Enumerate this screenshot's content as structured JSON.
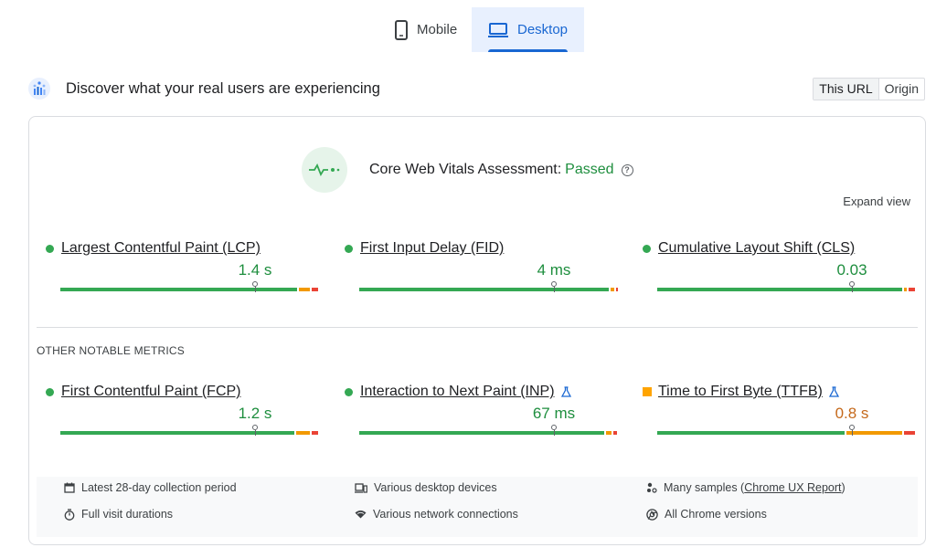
{
  "tabs": [
    {
      "label": "Mobile",
      "icon": "phone-icon",
      "selected": false
    },
    {
      "label": "Desktop",
      "icon": "laptop-icon",
      "selected": true
    }
  ],
  "header": {
    "title": "Discover what your real users are experiencing",
    "scope_options": [
      "This URL",
      "Origin"
    ],
    "scope_selected": "This URL"
  },
  "assessment": {
    "label": "Core Web Vitals Assessment:",
    "status": "Passed",
    "expand_label": "Expand view"
  },
  "core_metrics": [
    {
      "name": "Largest Contentful Paint (LCP)",
      "value": "1.4 s",
      "status": "good",
      "marker": 0.75,
      "dist": [
        0.92,
        0.05,
        0.03
      ]
    },
    {
      "name": "First Input Delay (FID)",
      "value": "4 ms",
      "status": "good",
      "marker": 0.75,
      "dist": [
        0.97,
        0.02,
        0.01
      ]
    },
    {
      "name": "Cumulative Layout Shift (CLS)",
      "value": "0.03",
      "status": "good",
      "marker": 0.75,
      "dist": [
        0.95,
        0.02,
        0.03
      ]
    }
  ],
  "other_label": "OTHER NOTABLE METRICS",
  "other_metrics": [
    {
      "name": "First Contentful Paint (FCP)",
      "value": "1.2 s",
      "status": "good",
      "marker": 0.75,
      "experimental": false,
      "dist": [
        0.91,
        0.06,
        0.03
      ]
    },
    {
      "name": "Interaction to Next Paint (INP)",
      "value": "67 ms",
      "status": "good",
      "marker": 0.75,
      "experimental": true,
      "dist": [
        0.95,
        0.03,
        0.02
      ]
    },
    {
      "name": "Time to First Byte (TTFB)",
      "value": "0.8 s",
      "status": "needs-improvement",
      "marker": 0.75,
      "experimental": true,
      "dist": [
        0.73,
        0.22,
        0.05
      ]
    }
  ],
  "footer": {
    "collection": "Latest 28-day collection period",
    "durations": "Full visit durations",
    "devices": "Various desktop devices",
    "network": "Various network connections",
    "samples_prefix": "Many samples (",
    "samples_link": "Chrome UX Report",
    "samples_suffix": ")",
    "versions": "All Chrome versions"
  },
  "colors": {
    "good": "#34a853",
    "needs_improvement": "#f29900",
    "poor": "#ea4335",
    "accent": "#1967d2"
  }
}
